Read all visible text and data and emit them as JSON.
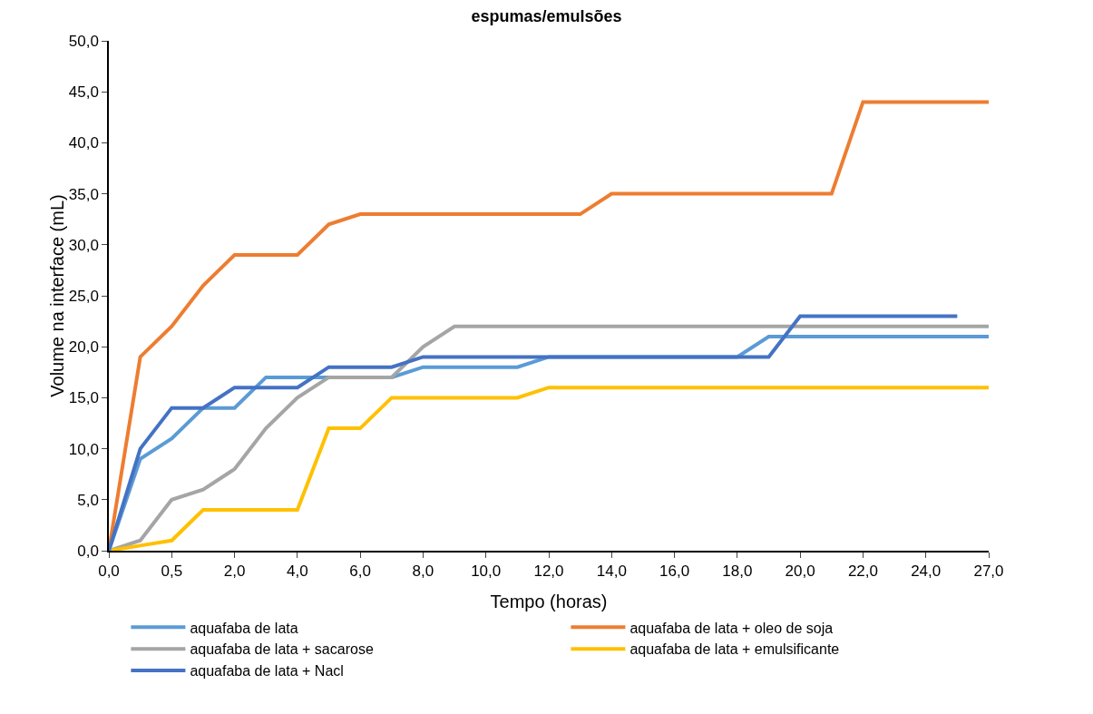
{
  "chart_data": {
    "type": "line",
    "title": "espumas/emulsões",
    "xlabel": "Tempo (horas)",
    "ylabel": "Volume na interface (mL)",
    "categories": [
      "0,0",
      null,
      "0,5",
      null,
      "2,0",
      null,
      "4,0",
      null,
      "6,0",
      null,
      "8,0",
      null,
      "10,0",
      null,
      "12,0",
      null,
      "14,0",
      null,
      "16,0",
      null,
      "18,0",
      null,
      "20,0",
      null,
      "22,0",
      null,
      "24,0",
      null,
      "27,0"
    ],
    "series": [
      {
        "name": "aquafaba de lata",
        "color": "#5b9bd5",
        "values": [
          0,
          9,
          11,
          14,
          14,
          17,
          17,
          17,
          17,
          17,
          18,
          18,
          18,
          18,
          19,
          19,
          19,
          19,
          19,
          19,
          19,
          21,
          21,
          21,
          21,
          21,
          21,
          21,
          21
        ]
      },
      {
        "name": "aquafaba de lata + oleo de soja",
        "color": "#ed7d31",
        "values": [
          0,
          19,
          22,
          26,
          29,
          29,
          29,
          32,
          33,
          33,
          33,
          33,
          33,
          33,
          33,
          33,
          35,
          35,
          35,
          35,
          35,
          35,
          35,
          35,
          44,
          44,
          44,
          44,
          44
        ]
      },
      {
        "name": "aquafaba de lata + sacarose",
        "color": "#a5a5a5",
        "values": [
          0,
          1,
          5,
          6,
          8,
          12,
          15,
          17,
          17,
          17,
          20,
          22,
          22,
          22,
          22,
          22,
          22,
          22,
          22,
          22,
          22,
          22,
          22,
          22,
          22,
          22,
          22,
          22,
          22
        ]
      },
      {
        "name": "aquafaba de lata + emulsificante",
        "color": "#ffc000",
        "values": [
          0,
          0.5,
          1,
          4,
          4,
          4,
          4,
          12,
          12,
          15,
          15,
          15,
          15,
          15,
          16,
          16,
          16,
          16,
          16,
          16,
          16,
          16,
          16,
          16,
          16,
          16,
          16,
          16,
          16
        ]
      },
      {
        "name": "aquafaba de lata + Nacl",
        "color": "#4472c4",
        "values": [
          0,
          10,
          14,
          14,
          16,
          16,
          16,
          18,
          18,
          18,
          19,
          19,
          19,
          19,
          19,
          19,
          19,
          19,
          19,
          19,
          19,
          19,
          23,
          23,
          23,
          23,
          23,
          23,
          null
        ]
      }
    ],
    "ylim": [
      0,
      50
    ],
    "yticks": [
      {
        "value": 0,
        "label": "0,0"
      },
      {
        "value": 5,
        "label": "5,0"
      },
      {
        "value": 10,
        "label": "10,0"
      },
      {
        "value": 15,
        "label": "15,0"
      },
      {
        "value": 20,
        "label": "20,0"
      },
      {
        "value": 25,
        "label": "25,0"
      },
      {
        "value": 30,
        "label": "30,0"
      },
      {
        "value": 35,
        "label": "35,0"
      },
      {
        "value": 40,
        "label": "40,0"
      },
      {
        "value": 45,
        "label": "45,0"
      },
      {
        "value": 50,
        "label": "50,0"
      }
    ],
    "grid": false,
    "legend": "bottom",
    "marker": "none",
    "line_style": "solid"
  }
}
